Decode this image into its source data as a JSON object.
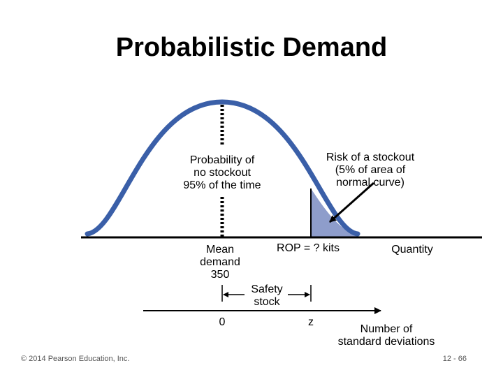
{
  "title": "Probabilistic Demand",
  "labels": {
    "no_stockout": [
      "Probability of",
      "no stockout",
      "95% of the time"
    ],
    "risk": [
      "Risk of a stockout",
      "(5% of area of",
      "normal curve)"
    ],
    "mean": [
      "Mean",
      "demand",
      "350"
    ],
    "rop": "ROP = ? kits",
    "quantity": "Quantity",
    "safety_stock": [
      "Safety",
      "stock"
    ],
    "zero": "0",
    "z": "z",
    "std_axis": [
      "Number of",
      "standard deviations"
    ]
  },
  "footer": {
    "copyright": "© 2014 Pearson Education, Inc.",
    "page": "12 - 66"
  }
}
